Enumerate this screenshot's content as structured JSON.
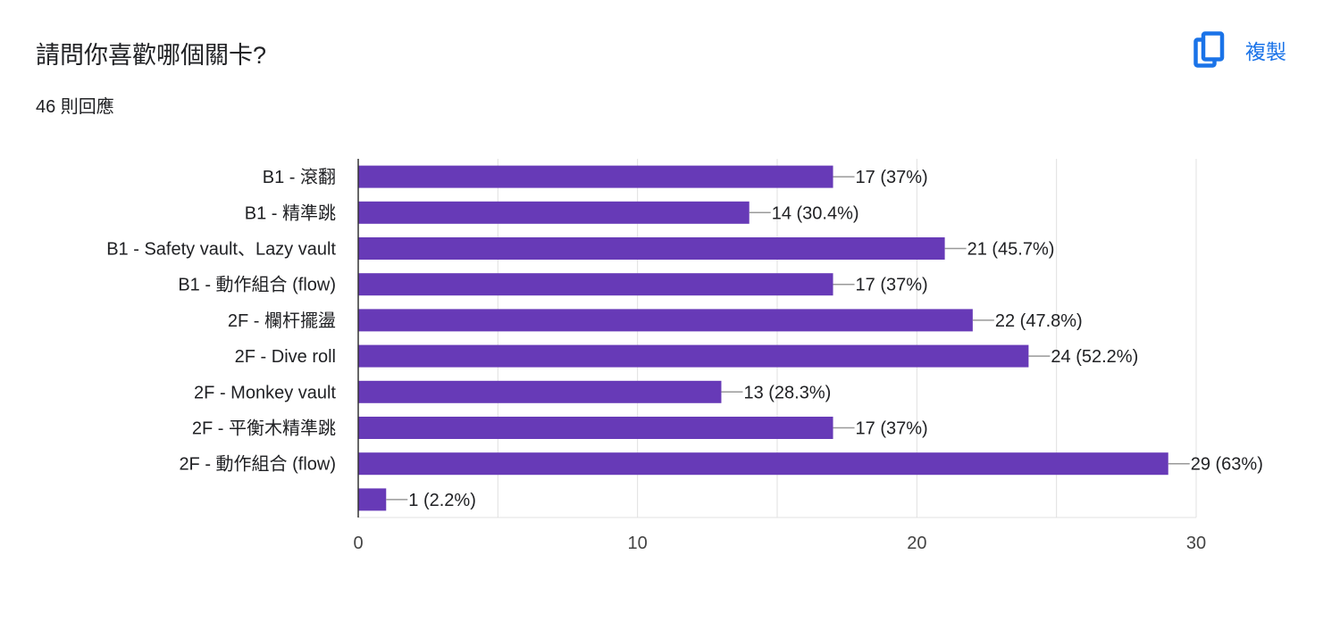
{
  "header": {
    "question": "請問你喜歡哪個關卡?",
    "response_count": "46 則回應",
    "copy_label": "複製",
    "copy_icon": "copy-icon"
  },
  "colors": {
    "bar": "#673ab7",
    "accent": "#1a73e8",
    "grid": "#e0e0e0",
    "axis": "#333333"
  },
  "chart_data": {
    "type": "bar",
    "orientation": "horizontal",
    "title": "請問你喜歡哪個關卡?",
    "categories": [
      "B1 - 滾翻",
      "B1 - 精準跳",
      "B1 - Safety vault、Lazy vault",
      "B1 - 動作組合 (flow)",
      "2F - 欄杆擺盪",
      "2F - Dive roll",
      "2F - Monkey vault",
      "2F - 平衡木精準跳",
      "2F - 動作組合 (flow)",
      ""
    ],
    "values": [
      17,
      14,
      21,
      17,
      22,
      24,
      13,
      17,
      29,
      1
    ],
    "data_labels": [
      "17 (37%)",
      "14 (30.4%)",
      "21 (45.7%)",
      "17 (37%)",
      "22 (47.8%)",
      "24 (52.2%)",
      "13 (28.3%)",
      "17 (37%)",
      "29 (63%)",
      "1 (2.2%)"
    ],
    "xlim": [
      0,
      30
    ],
    "xticks": [
      0,
      10,
      20,
      30
    ],
    "xtick_labels": [
      "0",
      "10",
      "20",
      "30"
    ],
    "minor_grid_step": 5,
    "xlabel": "",
    "ylabel": "",
    "grid": true
  }
}
